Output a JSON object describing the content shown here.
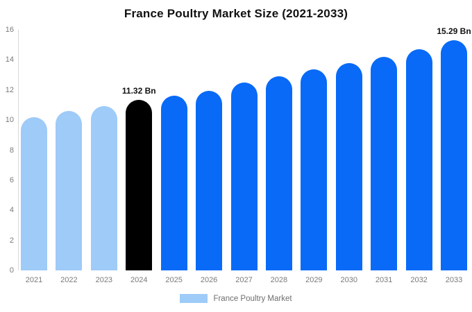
{
  "chart_data": {
    "type": "bar",
    "title": "France Poultry Market Size (2021-2033)",
    "categories": [
      "2021",
      "2022",
      "2023",
      "2024",
      "2025",
      "2026",
      "2027",
      "2028",
      "2029",
      "2030",
      "2031",
      "2032",
      "2033"
    ],
    "values": [
      10.2,
      10.6,
      10.92,
      11.32,
      11.6,
      11.92,
      12.48,
      12.9,
      13.38,
      13.8,
      14.22,
      14.72,
      15.29
    ],
    "bar_colors": [
      "#9ECBF8",
      "#9ECBF8",
      "#9ECBF8",
      "#000000",
      "#086AF7",
      "#086AF7",
      "#086AF7",
      "#086AF7",
      "#086AF7",
      "#086AF7",
      "#086AF7",
      "#086AF7",
      "#086AF7"
    ],
    "annotations": [
      {
        "index": 3,
        "text": "11.32 Bn"
      },
      {
        "index": 12,
        "text": "15.29 Bn"
      }
    ],
    "yticks": [
      0,
      2,
      4,
      6,
      8,
      10,
      12,
      14,
      16
    ],
    "ylim": [
      0,
      16
    ],
    "grid": false,
    "legend_position": "bottom-center",
    "legend": {
      "label": "France Poultry Market",
      "swatch_color": "#9ECBF8"
    },
    "colors": {
      "light_blue": "#9ECBF8",
      "vivid_blue": "#086AF7",
      "highlight_black": "#000000",
      "axis_text": "#7a7a7a",
      "axis_line": "#d9d9d9",
      "title_text": "#111111"
    }
  }
}
